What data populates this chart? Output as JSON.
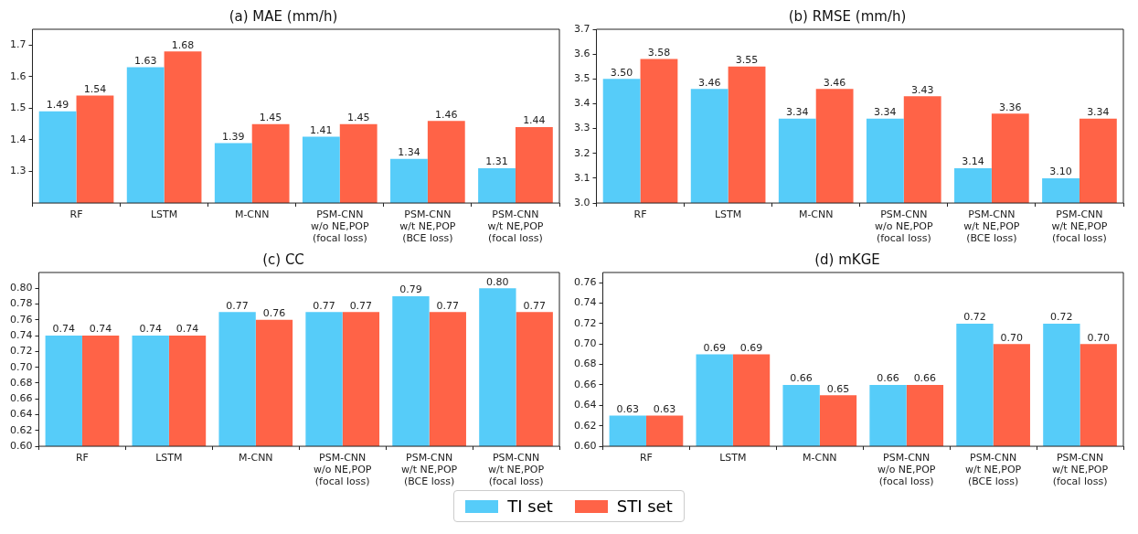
{
  "chart_data": [
    {
      "type": "bar",
      "title": "(a) MAE (mm/h)",
      "categories": [
        "RF",
        "LSTM",
        "M-CNN",
        "PSM-CNN\nw/o NE,POP\n(focal loss)",
        "PSM-CNN\nw/t NE,POP\n(BCE loss)",
        "PSM-CNN\nw/t NE,POP\n(focal loss)"
      ],
      "series": [
        {
          "name": "TI set",
          "color": "#56ccf9",
          "values": [
            1.49,
            1.63,
            1.39,
            1.41,
            1.34,
            1.31
          ],
          "value_labels": [
            "1.49",
            "1.63",
            "1.39",
            "1.41",
            "1.34",
            "1.31"
          ]
        },
        {
          "name": "STI set",
          "color": "#ff6347",
          "values": [
            1.54,
            1.68,
            1.45,
            1.45,
            1.46,
            1.44
          ],
          "value_labels": [
            "1.54",
            "1.68",
            "1.45",
            "1.45",
            "1.46",
            "1.44"
          ]
        }
      ],
      "ylim": [
        1.2,
        1.75
      ],
      "yticks": [
        1.3,
        1.4,
        1.5,
        1.6,
        1.7
      ],
      "grid": false,
      "legend": "bottom"
    },
    {
      "type": "bar",
      "title": "(b) RMSE (mm/h)",
      "categories": [
        "RF",
        "LSTM",
        "M-CNN",
        "PSM-CNN\nw/o NE,POP\n(focal loss)",
        "PSM-CNN\nw/t NE,POP\n(BCE loss)",
        "PSM-CNN\nw/t NE,POP\n(focal loss)"
      ],
      "series": [
        {
          "name": "TI set",
          "color": "#56ccf9",
          "values": [
            3.5,
            3.46,
            3.34,
            3.34,
            3.14,
            3.1
          ],
          "value_labels": [
            "3.50",
            "3.46",
            "3.34",
            "3.34",
            "3.14",
            "3.10"
          ]
        },
        {
          "name": "STI set",
          "color": "#ff6347",
          "values": [
            3.58,
            3.55,
            3.46,
            3.43,
            3.36,
            3.34
          ],
          "value_labels": [
            "3.58",
            "3.55",
            "3.46",
            "3.43",
            "3.36",
            "3.34"
          ]
        }
      ],
      "ylim": [
        3.0,
        3.7
      ],
      "yticks": [
        {
          "value": 3.0,
          "label": "3.0"
        },
        3.1,
        3.2,
        3.3,
        3.4,
        3.5,
        3.6,
        3.7
      ],
      "grid": false,
      "legend": "bottom"
    },
    {
      "type": "bar",
      "title": "(c) CC",
      "categories": [
        "RF",
        "LSTM",
        "M-CNN",
        "PSM-CNN\nw/o NE,POP\n(focal loss)",
        "PSM-CNN\nw/t NE,POP\n(BCE loss)",
        "PSM-CNN\nw/t NE,POP\n(focal loss)"
      ],
      "series": [
        {
          "name": "TI set",
          "color": "#56ccf9",
          "values": [
            0.74,
            0.74,
            0.77,
            0.77,
            0.79,
            0.8
          ],
          "value_labels": [
            "0.74",
            "0.74",
            "0.77",
            "0.77",
            "0.79",
            "0.80"
          ]
        },
        {
          "name": "STI set",
          "color": "#ff6347",
          "values": [
            0.74,
            0.74,
            0.76,
            0.77,
            0.77,
            0.77
          ],
          "value_labels": [
            "0.74",
            "0.74",
            "0.76",
            "0.77",
            "0.77",
            "0.77"
          ]
        }
      ],
      "ylim": [
        0.6,
        0.82
      ],
      "yticks": [
        {
          "value": 0.6,
          "label": "0.60"
        },
        0.62,
        0.64,
        0.66,
        0.68,
        {
          "value": 0.7,
          "label": "0.70"
        },
        0.72,
        0.74,
        0.76,
        0.78,
        {
          "value": 0.8,
          "label": "0.80"
        }
      ],
      "grid": false,
      "legend": "bottom"
    },
    {
      "type": "bar",
      "title": "(d) mKGE",
      "categories": [
        "RF",
        "LSTM",
        "M-CNN",
        "PSM-CNN\nw/o NE,POP\n(focal loss)",
        "PSM-CNN\nw/t NE,POP\n(BCE loss)",
        "PSM-CNN\nw/t NE,POP\n(focal loss)"
      ],
      "series": [
        {
          "name": "TI set",
          "color": "#56ccf9",
          "values": [
            0.63,
            0.69,
            0.66,
            0.66,
            0.72,
            0.72
          ],
          "value_labels": [
            "0.63",
            "0.69",
            "0.66",
            "0.66",
            "0.72",
            "0.72"
          ]
        },
        {
          "name": "STI set",
          "color": "#ff6347",
          "values": [
            0.63,
            0.69,
            0.65,
            0.66,
            0.7,
            0.7
          ],
          "value_labels": [
            "0.63",
            "0.69",
            "0.65",
            "0.66",
            "0.70",
            "0.70"
          ]
        }
      ],
      "ylim": [
        0.6,
        0.77
      ],
      "yticks": [
        {
          "value": 0.6,
          "label": "0.60"
        },
        0.62,
        0.64,
        0.66,
        0.68,
        {
          "value": 0.7,
          "label": "0.70"
        },
        0.72,
        0.74,
        0.76
      ],
      "grid": false,
      "legend": "bottom"
    }
  ]
}
